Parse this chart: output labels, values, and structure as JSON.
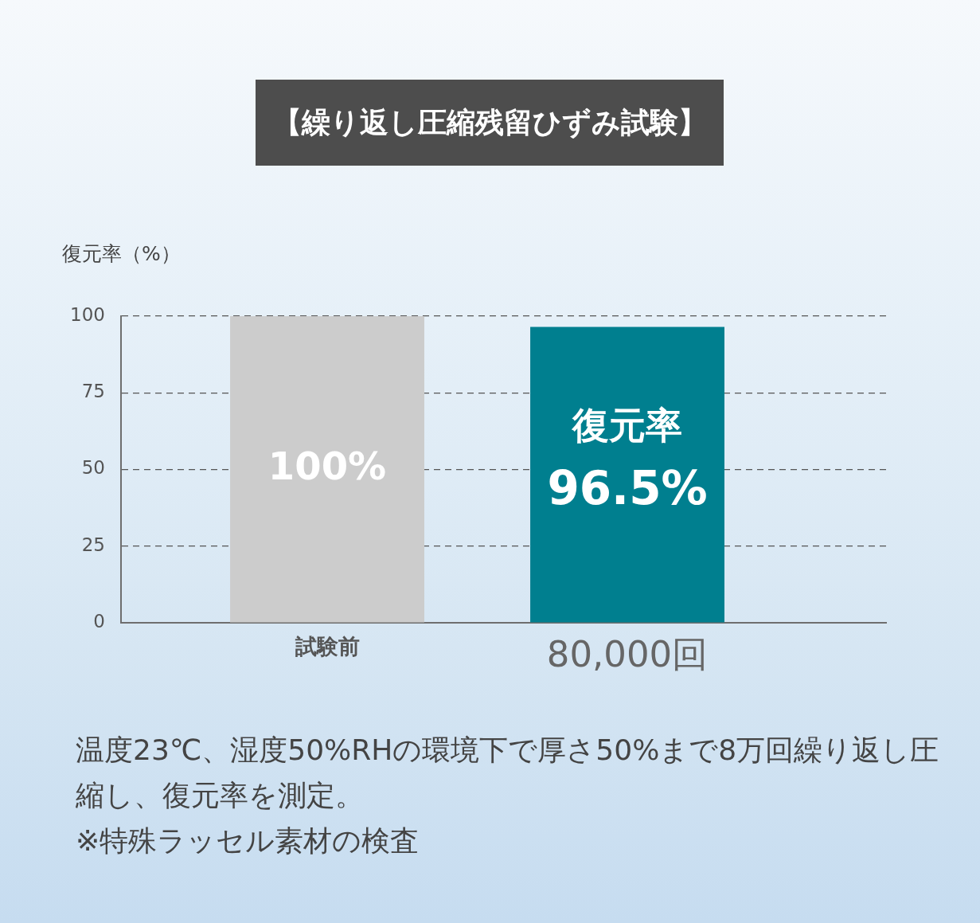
{
  "chart_data": {
    "type": "bar",
    "title": "【繰り返し圧縮残留ひずみ試験】",
    "ylabel": "復元率（%）",
    "categories": [
      "試験前",
      "80,000回"
    ],
    "values": [
      100,
      96.5
    ],
    "colors": [
      "#cccccc",
      "#007f8f"
    ],
    "ylim": [
      0,
      100
    ],
    "yticks": [
      0,
      25,
      50,
      75,
      100
    ],
    "grid": "y",
    "value_labels": [
      "100%",
      "96.5%"
    ],
    "annotations": [
      "復元率",
      "温度23℃、湿度50%RHの環境下で厚さ50%まで8万回繰り返し圧縮し、復元率を測定。",
      "※特殊ラッセル素材の検査"
    ]
  }
}
